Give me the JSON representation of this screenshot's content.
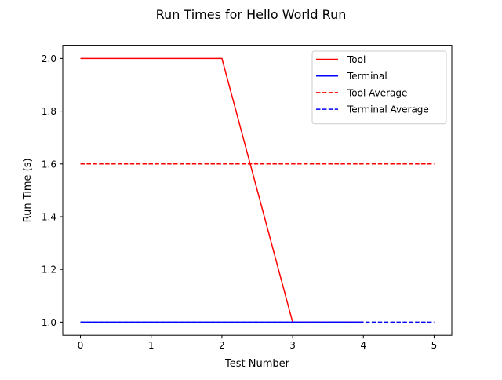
{
  "chart_data": {
    "type": "line",
    "title": "Run Times for Hello World Run",
    "xlabel": "Test Number",
    "ylabel": "Run Time (s)",
    "xlim": [
      -0.25,
      5.25
    ],
    "ylim": [
      0.95,
      2.05
    ],
    "xticks": [
      0,
      1,
      2,
      3,
      4,
      5
    ],
    "yticks": [
      1.0,
      1.2,
      1.4,
      1.6,
      1.8,
      2.0
    ],
    "xtick_labels": [
      "0",
      "1",
      "2",
      "3",
      "4",
      "5"
    ],
    "ytick_labels": [
      "1.0",
      "1.2",
      "1.4",
      "1.6",
      "1.8",
      "2.0"
    ],
    "grid": false,
    "legend_position": "top-right",
    "series": [
      {
        "name": "Tool",
        "color": "#ff0000",
        "style": "solid",
        "x": [
          0,
          1,
          2,
          3,
          4
        ],
        "y": [
          2.0,
          2.0,
          2.0,
          1.0,
          1.0
        ]
      },
      {
        "name": "Terminal",
        "color": "#0000ff",
        "style": "solid",
        "x": [
          0,
          1,
          2,
          3,
          4
        ],
        "y": [
          1.0,
          1.0,
          1.0,
          1.0,
          1.0
        ]
      },
      {
        "name": "Tool Average",
        "color": "#ff0000",
        "style": "dashed",
        "x": [
          0,
          5
        ],
        "y": [
          1.6,
          1.6
        ]
      },
      {
        "name": "Terminal Average",
        "color": "#0000ff",
        "style": "dashed",
        "x": [
          0,
          5
        ],
        "y": [
          1.0,
          1.0
        ]
      }
    ]
  }
}
